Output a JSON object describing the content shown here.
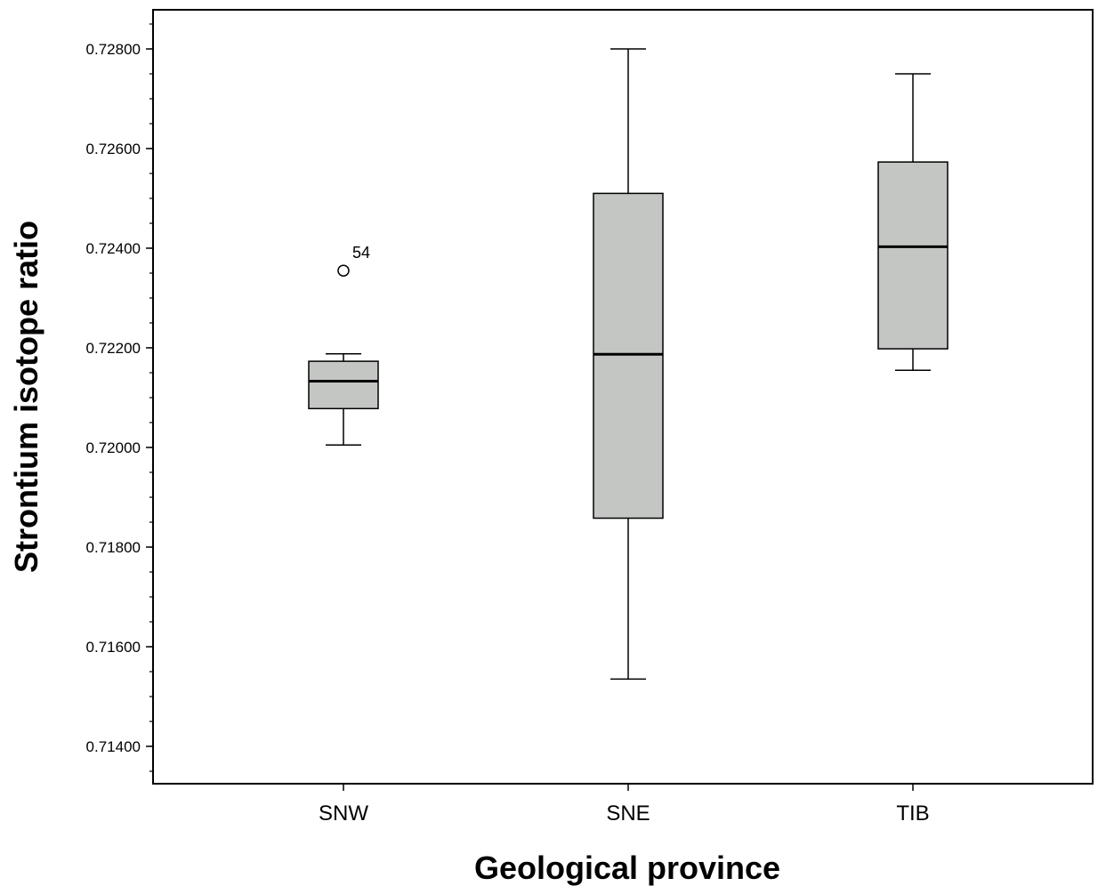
{
  "chart_data": {
    "type": "boxplot",
    "xlabel": "Geological province",
    "ylabel": "Strontium isotope ratio",
    "ylim": [
      0.7135,
      0.729
    ],
    "y_ticks": [
      {
        "value": 0.714,
        "label": "0.71400"
      },
      {
        "value": 0.716,
        "label": "0.71600"
      },
      {
        "value": 0.718,
        "label": "0.71800"
      },
      {
        "value": 0.72,
        "label": "0.72000"
      },
      {
        "value": 0.722,
        "label": "0.72200"
      },
      {
        "value": 0.724,
        "label": "0.72400"
      },
      {
        "value": 0.726,
        "label": "0.72600"
      },
      {
        "value": 0.728,
        "label": "0.72800"
      }
    ],
    "y_minor_step": 0.0005,
    "categories": [
      "SNW",
      "SNE",
      "TIB"
    ],
    "boxes": [
      {
        "category": "SNW",
        "whisker_low": 0.72005,
        "q1": 0.72078,
        "median": 0.72133,
        "q3": 0.72173,
        "whisker_high": 0.72188,
        "outliers": [
          {
            "value": 0.72355,
            "label": "54"
          }
        ]
      },
      {
        "category": "SNE",
        "whisker_low": 0.71535,
        "q1": 0.71858,
        "median": 0.72187,
        "q3": 0.7251,
        "whisker_high": 0.728,
        "outliers": []
      },
      {
        "category": "TIB",
        "whisker_low": 0.72155,
        "q1": 0.72198,
        "median": 0.72403,
        "q3": 0.72573,
        "whisker_high": 0.7275,
        "outliers": []
      }
    ],
    "box_fill": "#c4c6c4",
    "grid": false,
    "legend": "none"
  }
}
